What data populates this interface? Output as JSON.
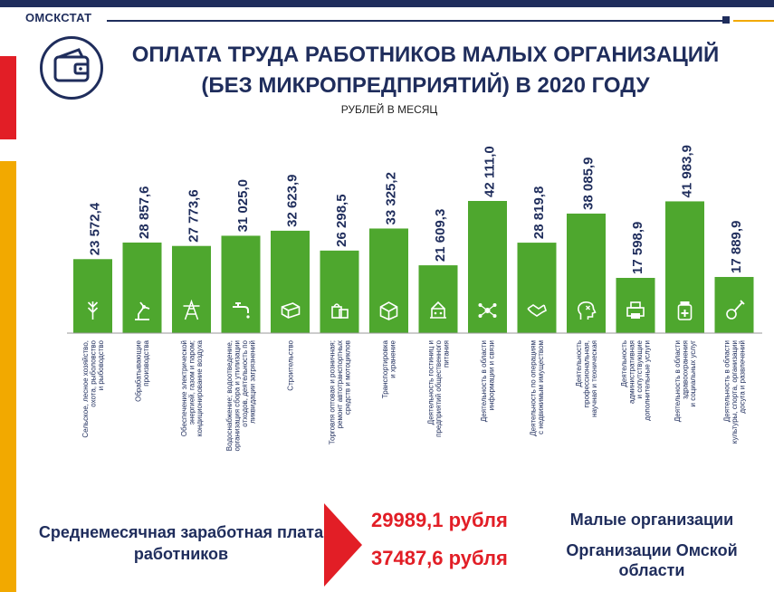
{
  "header": {
    "brand": "ОМСКСТАТ",
    "title_line1": "ОПЛАТА ТРУДА РАБОТНИКОВ МАЛЫХ ОРГАНИЗАЦИЙ",
    "title_line2": "(БЕЗ МИКРОПРЕДПРИЯТИЙ) В 2020 ГОДУ",
    "unit": "РУБЛЕЙ В МЕСЯЦ"
  },
  "colors": {
    "navy": "#1f2d5c",
    "red": "#e21e26",
    "yellow": "#f2a900",
    "bar": "#4ea72e"
  },
  "chart_data": {
    "type": "bar",
    "categories": [
      "Сельское, лесное хозяйство, охота, рыболовство и рыбоводство",
      "Обрабатывающие производства",
      "Обеспечение электрической энергией, газом и паром; кондиционирование воздуха",
      "Водоснабжение; водоотведение, организация сбора и утилизации отходов, деятельность по ликвидации загрязнений",
      "Строительство",
      "Торговля оптовая и розничная; ремонт автотранспортных средств и мотоциклов",
      "Транспортировка и хранение",
      "Деятельность гостиниц и предприятий общественного питания",
      "Деятельность в области информации и связи",
      "Деятельность по операциям с недвижимым имуществом",
      "Деятельность профессиональная, научная и техническая",
      "Деятельность административная и сопутствующие дополнительные услуги",
      "Деятельность в области здравоохранения и социальных услуг",
      "Деятельность в области культуры, спорта, организации досуга и развлечений"
    ],
    "category_lines": [
      [
        "Сельское, лесное хозяйство,",
        "охота, рыболовство",
        "и рыбоводство"
      ],
      [
        "Обрабатывающие",
        "производства"
      ],
      [
        "Обеспечение электрической",
        "энергией, газом и паром;",
        "кондиционирование воздуха"
      ],
      [
        "Водоснабжение; водоотведение,",
        "организация сбора и утилизации",
        "отходов, деятельность по",
        "ликвидации загрязнений"
      ],
      [
        "Строительство"
      ],
      [
        "Торговля оптовая и розничная;",
        "ремонт автотранспортных",
        "средств и мотоциклов"
      ],
      [
        "Транспортировка",
        "и хранение"
      ],
      [
        "Деятельность гостиниц и",
        "предприятий общественного",
        "питания"
      ],
      [
        "Деятельность в области",
        "информации и связи"
      ],
      [
        "Деятельность по операциям",
        "с недвижимым имуществом"
      ],
      [
        "Деятельность",
        "профессиональная,",
        "научная и техническая"
      ],
      [
        "Деятельность",
        "административная",
        "и сопутствующие",
        "дополнительные услуги"
      ],
      [
        "Деятельность в области",
        "здравоохранения",
        "и социальных услуг"
      ],
      [
        "Деятельность в области",
        "культуры, спорта, организации",
        "досуга и развлечений"
      ]
    ],
    "value_labels": [
      "23 572,4",
      "28 857,6",
      "27 773,6",
      "31 025,0",
      "32 623,9",
      "26 298,5",
      "33 325,2",
      "21 609,3",
      "42 111,0",
      "28 819,8",
      "38 085,9",
      "17 598,9",
      "41 983,9",
      "17 889,9"
    ],
    "values": [
      23572.4,
      28857.6,
      27773.6,
      31025.0,
      32623.9,
      26298.5,
      33325.2,
      21609.3,
      42111.0,
      28819.8,
      38085.9,
      17598.9,
      41983.9,
      17889.9
    ],
    "icons": [
      "wheat-icon",
      "robot-arm-icon",
      "power-tower-icon",
      "faucet-icon",
      "bricks-icon",
      "shopping-bags-icon",
      "package-box-icon",
      "hotel-icon",
      "network-icon",
      "handshake-icon",
      "head-idea-icon",
      "printer-icon",
      "medicine-icon",
      "guitar-icon"
    ],
    "ylim": [
      0,
      42111.0
    ]
  },
  "footer": {
    "label": "Среднемесячная заработная плата работников",
    "value_small": "29989,1 рубля",
    "value_region": "37487,6 рубля",
    "label_small": "Малые организации",
    "label_region": "Организации Омской области"
  }
}
